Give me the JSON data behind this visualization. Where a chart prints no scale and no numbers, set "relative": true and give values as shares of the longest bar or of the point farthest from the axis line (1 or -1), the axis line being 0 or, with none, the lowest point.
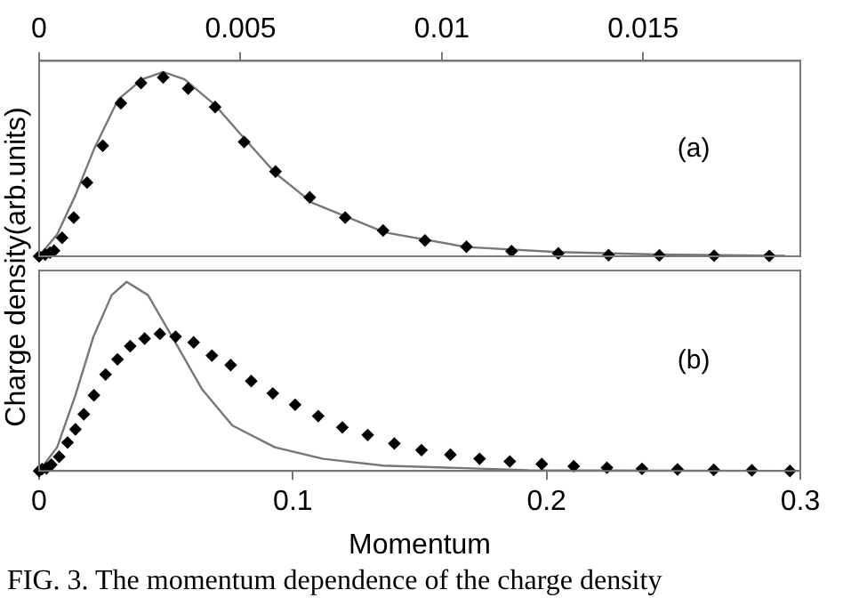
{
  "chart_data": [
    {
      "type": "line",
      "ylabel": "Charge density(arb.units)",
      "relative": true,
      "xlim": [
        0,
        0.0189
      ],
      "xticks": [
        0,
        0.005,
        0.01,
        0.015
      ],
      "tick_labels": "x",
      "grid": false,
      "legend": false,
      "annotations": [
        "(a)"
      ],
      "series": [
        {
          "type": "line",
          "color": "#777777",
          "marker": "none",
          "x": [
            0,
            0.00045,
            0.0009,
            0.00136,
            0.00196,
            0.00256,
            0.00308,
            0.00361,
            0.00437,
            0.00497,
            0.00587,
            0.00678,
            0.00858,
            0.01061,
            0.01287,
            0.01536,
            0.01852
          ],
          "values": [
            0,
            0.12,
            0.33,
            0.58,
            0.85,
            0.96,
            1.0,
            0.96,
            0.82,
            0.67,
            0.45,
            0.29,
            0.13,
            0.05,
            0.023,
            0.01,
            0.003
          ]
        },
        {
          "type": "scatter",
          "color": "#000000",
          "marker": "diamond",
          "x": [
            0,
            0.00015,
            0.00027,
            0.00037,
            0.00057,
            0.00086,
            0.00119,
            0.00158,
            0.00203,
            0.00253,
            0.00308,
            0.0037,
            0.00437,
            0.00509,
            0.00587,
            0.00672,
            0.0076,
            0.00854,
            0.00958,
            0.01061,
            0.01173,
            0.01289,
            0.01414,
            0.0154,
            0.01676,
            0.01813
          ],
          "values": [
            0,
            0.01,
            0.02,
            0.03,
            0.1,
            0.21,
            0.4,
            0.6,
            0.83,
            0.94,
            0.97,
            0.91,
            0.81,
            0.62,
            0.46,
            0.32,
            0.21,
            0.14,
            0.086,
            0.052,
            0.028,
            0.016,
            0.006,
            0.005,
            0.003,
            0.002
          ]
        }
      ]
    },
    {
      "type": "line",
      "xlabel": "Momentum",
      "relative": true,
      "xlim": [
        0,
        0.3
      ],
      "xticks": [
        0,
        0.1,
        0.2,
        0.3
      ],
      "tick_labels": "x",
      "grid": false,
      "legend": false,
      "annotations": [
        "(b)",
        "FIG. 3. The momentum dependence of the charge density"
      ],
      "series": [
        {
          "type": "line",
          "color": "#777777",
          "marker": "none",
          "x": [
            0,
            0.0071,
            0.0143,
            0.0214,
            0.0286,
            0.0345,
            0.0429,
            0.0524,
            0.0643,
            0.0762,
            0.0929,
            0.1119,
            0.1357,
            0.1929,
            0.2929
          ],
          "values": [
            0,
            0.125,
            0.4,
            0.71,
            0.93,
            1.0,
            0.93,
            0.71,
            0.43,
            0.24,
            0.125,
            0.064,
            0.028,
            0.004,
            0
          ]
        },
        {
          "type": "scatter",
          "color": "#000000",
          "marker": "diamond",
          "x": [
            0,
            0.0012,
            0.0029,
            0.0048,
            0.0079,
            0.0112,
            0.0143,
            0.0176,
            0.0216,
            0.0262,
            0.0309,
            0.0359,
            0.0416,
            0.0476,
            0.0538,
            0.0609,
            0.0681,
            0.0755,
            0.0836,
            0.0921,
            0.1009,
            0.11,
            0.1195,
            0.1295,
            0.14,
            0.1507,
            0.1621,
            0.1736,
            0.1855,
            0.1981,
            0.2107,
            0.2238,
            0.2376,
            0.2516,
            0.2659,
            0.2809,
            0.2959
          ],
          "values": [
            0,
            0.01,
            0.014,
            0.033,
            0.075,
            0.15,
            0.22,
            0.3,
            0.4,
            0.51,
            0.59,
            0.66,
            0.7,
            0.725,
            0.71,
            0.68,
            0.61,
            0.56,
            0.475,
            0.41,
            0.35,
            0.29,
            0.23,
            0.19,
            0.145,
            0.11,
            0.086,
            0.064,
            0.05,
            0.036,
            0.025,
            0.017,
            0.011,
            0.008,
            0.006,
            0.003,
            0
          ]
        }
      ]
    }
  ]
}
